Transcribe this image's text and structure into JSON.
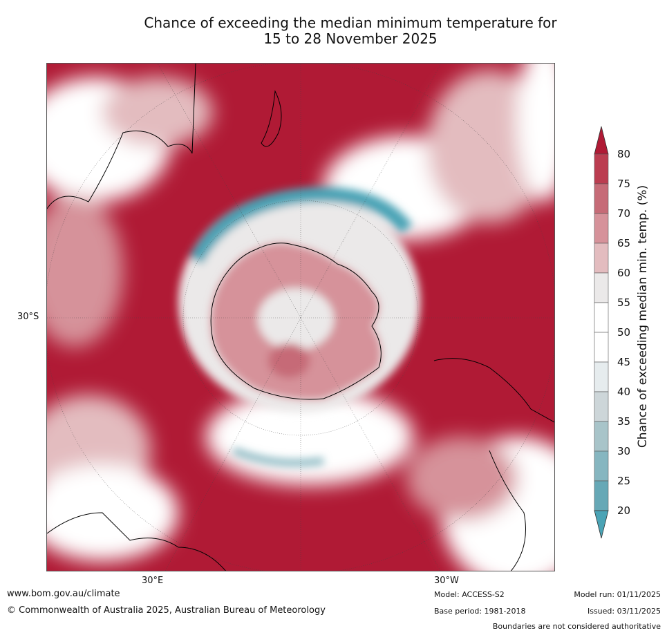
{
  "title": {
    "line1": "Chance of exceeding the median minimum temperature for",
    "line2": "15 to 28 November 2025"
  },
  "map": {
    "lat_label": "30°S",
    "lon_labels": [
      "30°E",
      "30°W"
    ],
    "colors": {
      "ocean_high": "#b01a35",
      "land_outline": "#000000",
      "gridline": "#444444"
    }
  },
  "colorbar": {
    "label": "Chance of exceeding median min. temp. (%)",
    "ticks": [
      "80",
      "75",
      "70",
      "65",
      "60",
      "55",
      "50",
      "45",
      "40",
      "35",
      "30",
      "25",
      "20"
    ],
    "colors": [
      "#b01a35",
      "#bb3d50",
      "#c66b77",
      "#d6929a",
      "#e3bcbf",
      "#ebe9e9",
      "#ffffff",
      "#ffffff",
      "#e6ecee",
      "#cdd6d9",
      "#a8c4c9",
      "#86b6c0",
      "#66a8b6",
      "#4aa3b5"
    ]
  },
  "footer": {
    "website": "www.bom.gov.au/climate",
    "copyright": "© Commonwealth of Australia 2025, Australian Bureau of Meteorology",
    "model": "Model: ACCESS-S2",
    "base_period": "Base period: 1981-2018",
    "model_run": "Model run: 01/11/2025",
    "issued": "Issued: 03/11/2025",
    "disclaimer": "Boundaries are not considered authoritative"
  }
}
